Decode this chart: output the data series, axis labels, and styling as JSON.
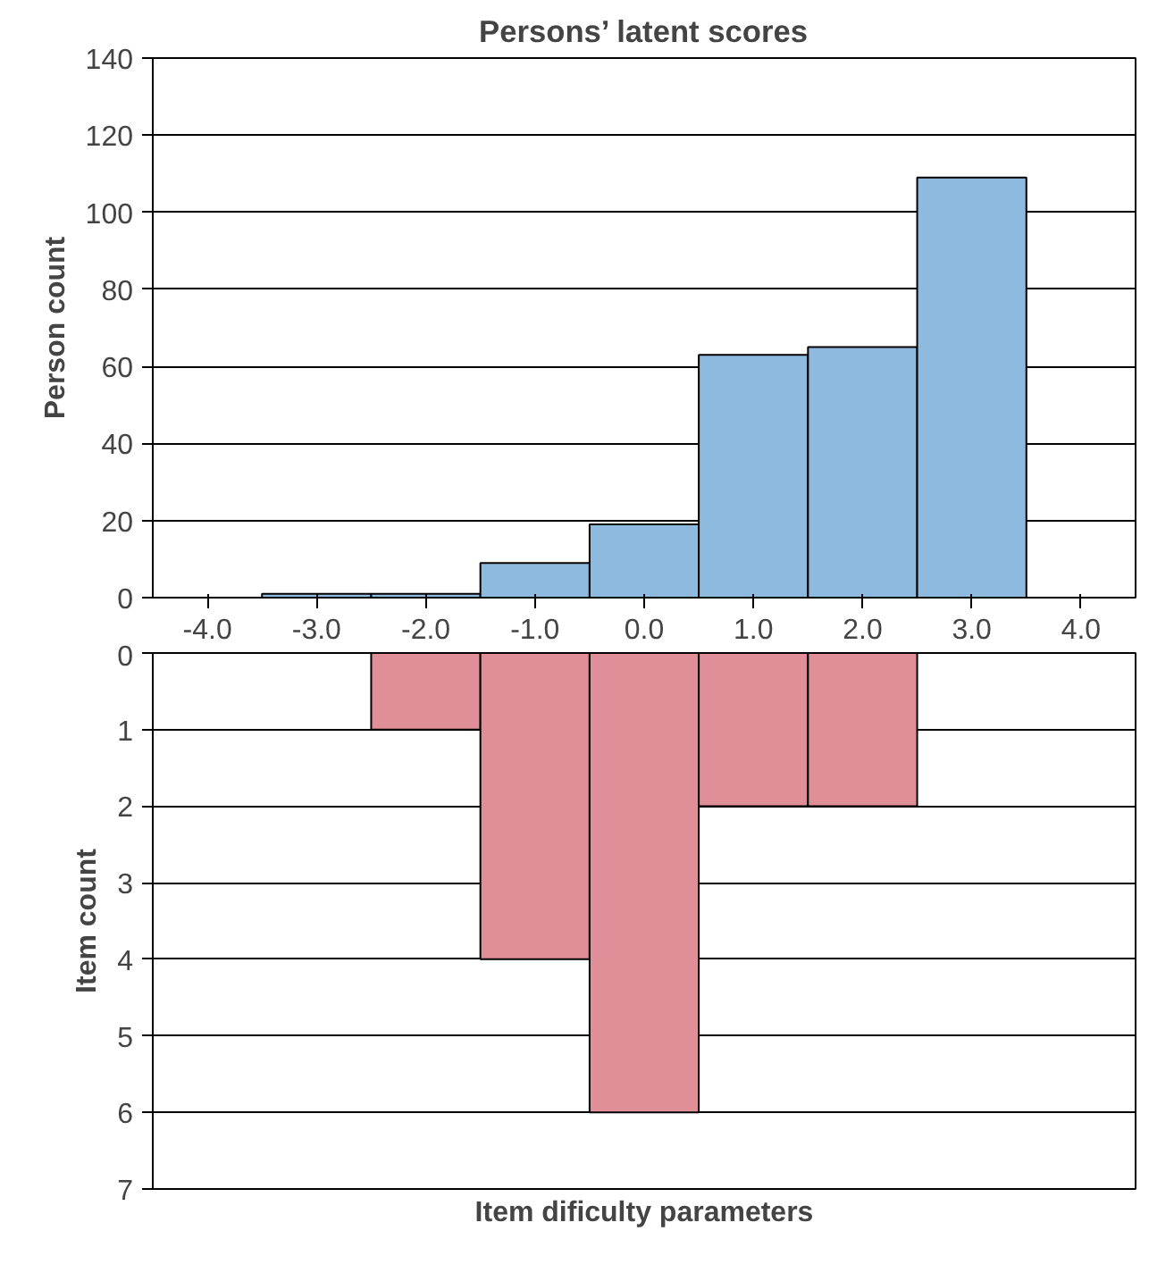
{
  "chart_data": [
    {
      "type": "histogram",
      "title": "Persons’ latent scores",
      "ylabel": "Person count",
      "bins": [
        -3.5,
        -2.5,
        -1.5,
        -0.5,
        0.5,
        1.5,
        2.5,
        3.5
      ],
      "values": [
        1,
        1,
        9,
        19,
        63,
        65,
        109
      ],
      "color": "#8fbadf",
      "xlim": [
        -4.5,
        4.5
      ],
      "xticks": [
        {
          "value": -4,
          "label": "-4.0"
        },
        {
          "value": -3,
          "label": "-3.0"
        },
        {
          "value": -2,
          "label": "-2.0"
        },
        {
          "value": -1,
          "label": "-1.0"
        },
        {
          "value": 0,
          "label": "0.0"
        },
        {
          "value": 1,
          "label": "1.0"
        },
        {
          "value": 2,
          "label": "2.0"
        },
        {
          "value": 3,
          "label": "3.0"
        },
        {
          "value": 4,
          "label": "4.0"
        }
      ],
      "ylim": [
        0,
        140
      ],
      "yticks": [
        0,
        20,
        40,
        60,
        80,
        100,
        120,
        140
      ],
      "grid": "y"
    },
    {
      "type": "histogram",
      "xlabel": "Item dificulty parameters",
      "ylabel": "Item count",
      "bins": [
        -2.5,
        -1.5,
        -0.5,
        0.5,
        1.5,
        2.5
      ],
      "values": [
        1,
        4,
        6,
        2,
        2
      ],
      "color": "#e08f98",
      "xlim": [
        -4.5,
        4.5
      ],
      "ylim": [
        7,
        0
      ],
      "yticks": [
        0,
        1,
        2,
        3,
        4,
        5,
        6,
        7
      ],
      "grid": "y",
      "tick_labels": "y"
    }
  ]
}
